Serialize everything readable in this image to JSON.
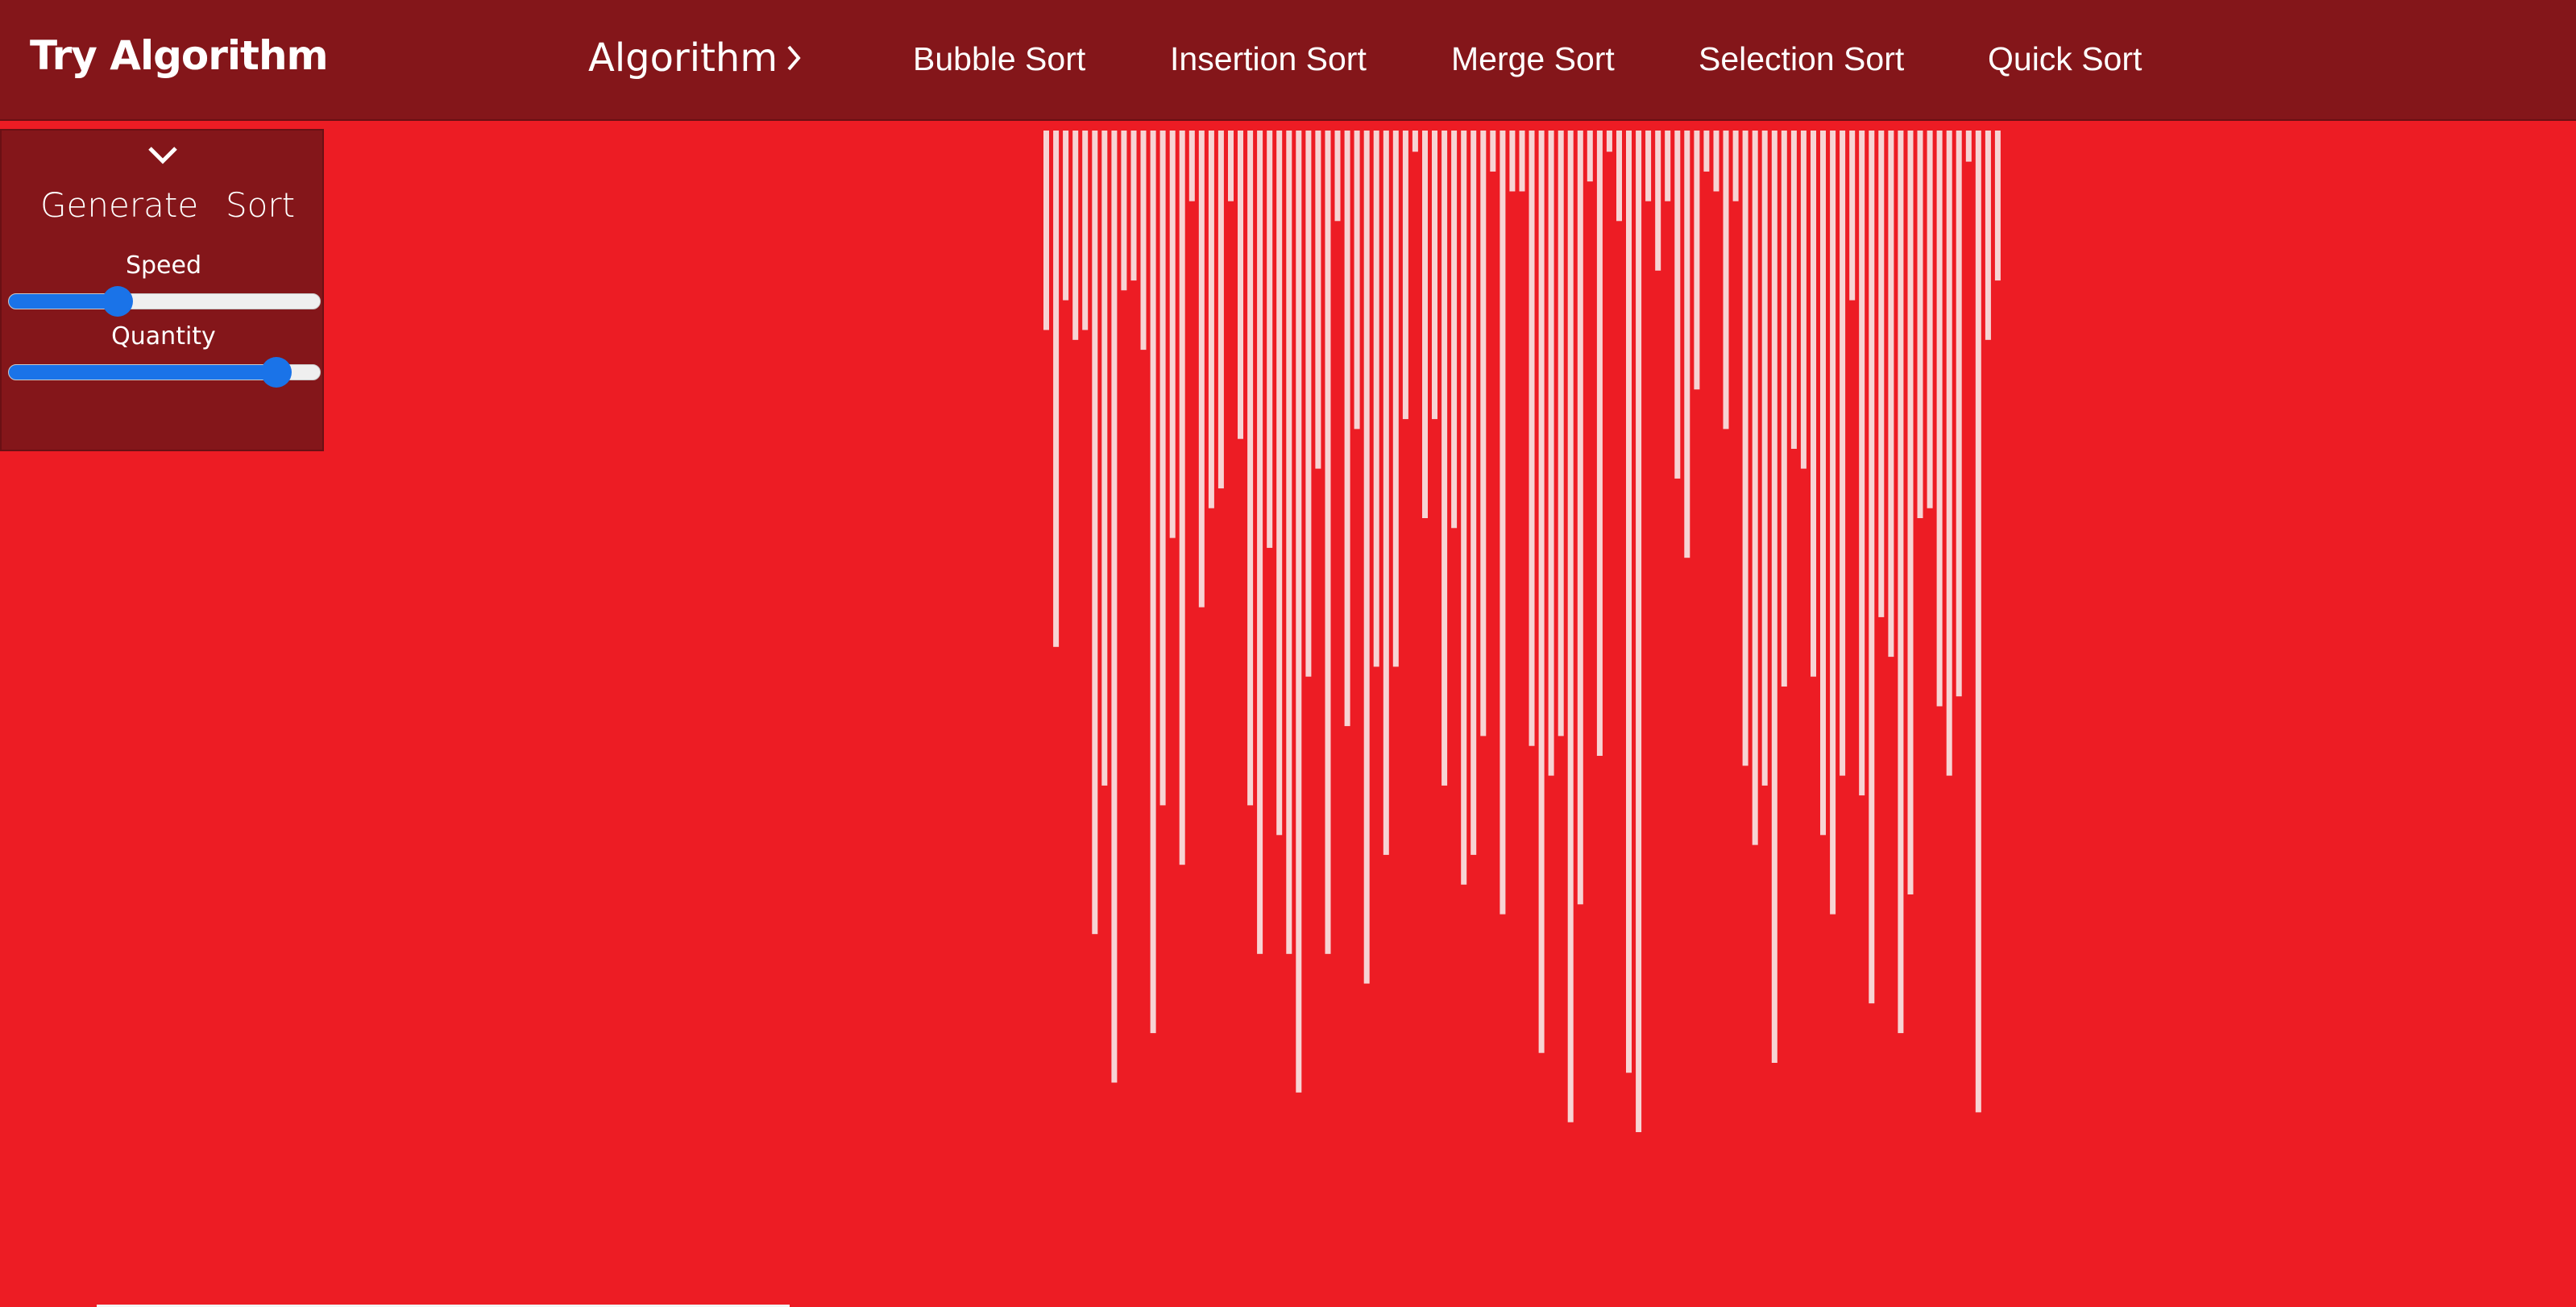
{
  "navbar": {
    "brand": "Try Algorithm",
    "algorithm_menu": "Algorithm",
    "links": [
      "Bubble Sort",
      "Insertion Sort",
      "Merge Sort",
      "Selection Sort",
      "Quick Sort"
    ]
  },
  "panel": {
    "generate_label": "Generate",
    "sort_label": "Sort",
    "speed_label": "Speed",
    "speed_value": 0.35,
    "quantity_label": "Quantity",
    "quantity_value": 0.86
  },
  "colors": {
    "background": "#ed1c24",
    "navbar": "#84161a",
    "bar": "#f7d4d4",
    "slider_accent": "#1a73e8"
  },
  "chart_data": {
    "type": "bar",
    "orientation": "hanging",
    "values": [
      0.19,
      0.51,
      0.16,
      0.2,
      0.19,
      0.8,
      0.65,
      0.95,
      0.15,
      0.14,
      0.21,
      0.9,
      0.67,
      0.4,
      0.73,
      0.06,
      0.47,
      0.37,
      0.35,
      0.06,
      0.3,
      0.67,
      0.82,
      0.41,
      0.7,
      0.82,
      0.96,
      0.54,
      0.33,
      0.82,
      0.08,
      0.59,
      0.29,
      0.85,
      0.53,
      0.72,
      0.53,
      0.28,
      0.01,
      0.38,
      0.28,
      0.65,
      0.39,
      0.75,
      0.72,
      0.6,
      0.03,
      0.78,
      0.05,
      0.05,
      0.61,
      0.92,
      0.64,
      0.6,
      0.99,
      0.77,
      0.04,
      0.62,
      0.01,
      0.08,
      0.94,
      1.0,
      0.06,
      0.13,
      0.06,
      0.34,
      0.42,
      0.25,
      0.03,
      0.05,
      0.29,
      0.06,
      0.63,
      0.71,
      0.65,
      0.93,
      0.55,
      0.31,
      0.33,
      0.54,
      0.7,
      0.78,
      0.64,
      0.16,
      0.66,
      0.87,
      0.48,
      0.52,
      0.9,
      0.76,
      0.38,
      0.37,
      0.57,
      0.64,
      0.56,
      0.02,
      0.98,
      0.2,
      0.14
    ],
    "title": "",
    "xlabel": "",
    "ylabel": ""
  }
}
